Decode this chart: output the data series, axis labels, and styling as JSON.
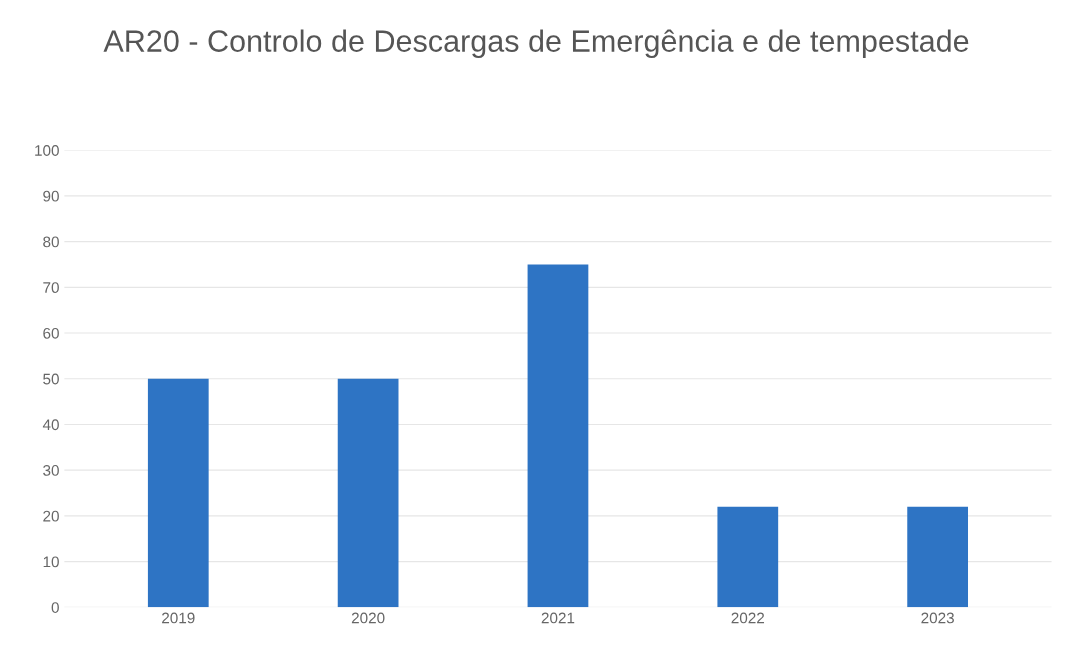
{
  "chart_data": {
    "type": "bar",
    "title": "AR20 - Controlo de Descargas de Emergência e de tempestade",
    "categories": [
      "2019",
      "2020",
      "2021",
      "2022",
      "2023"
    ],
    "values": [
      50,
      50,
      75,
      22,
      22
    ],
    "color": "#2e74c4",
    "ylim": [
      0,
      100
    ],
    "yticks": [
      0,
      10,
      20,
      30,
      40,
      50,
      60,
      70,
      80,
      90,
      100
    ],
    "grid": "y"
  }
}
